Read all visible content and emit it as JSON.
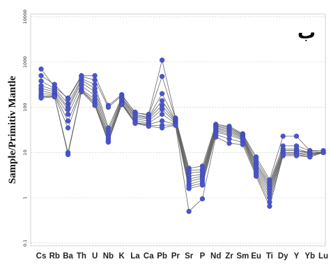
{
  "chart_data": {
    "type": "line",
    "title": "",
    "corner_label": "ب",
    "ylabel": "Sample/Primitiv Mantle",
    "xlabel": "",
    "yscale": "log",
    "ylim": [
      0.1,
      10000
    ],
    "yticks": [
      "0.1",
      "1",
      "10",
      "100",
      "1000",
      "10000"
    ],
    "ytick_values": [
      0.1,
      1,
      10,
      100,
      1000,
      10000
    ],
    "grid": true,
    "line_color": "#666666",
    "marker_color": "#4a56c8",
    "categories": [
      "Cs",
      "Rb",
      "Ba",
      "Th",
      "U",
      "Nb",
      "K",
      "La",
      "Ca",
      "Pb",
      "Pr",
      "Sr",
      "P",
      "Nd",
      "Zr",
      "Sm",
      "Eu",
      "Ti",
      "Dy",
      "Y",
      "Yb",
      "Lu"
    ],
    "series": [
      {
        "values": [
          700,
          280,
          160,
          500,
          500,
          110,
          190,
          75,
          70,
          1100,
          58,
          4.5,
          5.0,
          42,
          38,
          26,
          8.0,
          2.5,
          23,
          23,
          11,
          11
        ]
      },
      {
        "values": [
          500,
          320,
          150,
          480,
          400,
          100,
          180,
          78,
          65,
          480,
          55,
          4.0,
          4.2,
          40,
          36,
          25,
          7.0,
          2.2,
          14,
          14,
          11,
          10
        ]
      },
      {
        "values": [
          380,
          260,
          120,
          430,
          320,
          35,
          165,
          70,
          60,
          200,
          52,
          3.5,
          3.8,
          38,
          34,
          24,
          6.0,
          2.0,
          12,
          12,
          10,
          10
        ]
      },
      {
        "values": [
          300,
          240,
          100,
          400,
          260,
          30,
          160,
          65,
          58,
          140,
          50,
          3.0,
          3.3,
          36,
          32,
          23,
          5.5,
          1.8,
          11,
          11,
          10,
          10
        ]
      },
      {
        "values": [
          260,
          220,
          90,
          350,
          220,
          25,
          150,
          60,
          55,
          110,
          48,
          2.6,
          3.0,
          34,
          30,
          22,
          5.0,
          1.6,
          11,
          11,
          9.5,
          10
        ]
      },
      {
        "values": [
          230,
          200,
          70,
          300,
          180,
          22,
          140,
          55,
          50,
          90,
          46,
          2.3,
          2.7,
          32,
          28,
          21,
          4.5,
          1.4,
          10,
          10,
          9,
          10
        ]
      },
      {
        "values": [
          200,
          190,
          50,
          250,
          150,
          20,
          130,
          50,
          45,
          70,
          44,
          2.0,
          2.4,
          30,
          26,
          20,
          4.0,
          1.2,
          10,
          10,
          9,
          10
        ]
      },
      {
        "values": [
          180,
          180,
          35,
          240,
          130,
          18,
          125,
          46,
          42,
          50,
          42,
          1.8,
          2.1,
          28,
          24,
          19,
          3.6,
          1.0,
          9.5,
          9.5,
          8.5,
          10
        ]
      },
      {
        "values": [
          170,
          175,
          10,
          230,
          120,
          17,
          120,
          45,
          40,
          40,
          41,
          1.6,
          1.9,
          25,
          20,
          17,
          3.3,
          0.8,
          9,
          9,
          8,
          10
        ]
      },
      {
        "values": [
          160,
          170,
          9,
          220,
          110,
          17,
          115,
          44,
          38,
          35,
          40,
          0.5,
          0.95,
          22,
          16,
          15,
          3.0,
          0.65,
          8.5,
          8.5,
          8,
          10
        ]
      }
    ]
  }
}
